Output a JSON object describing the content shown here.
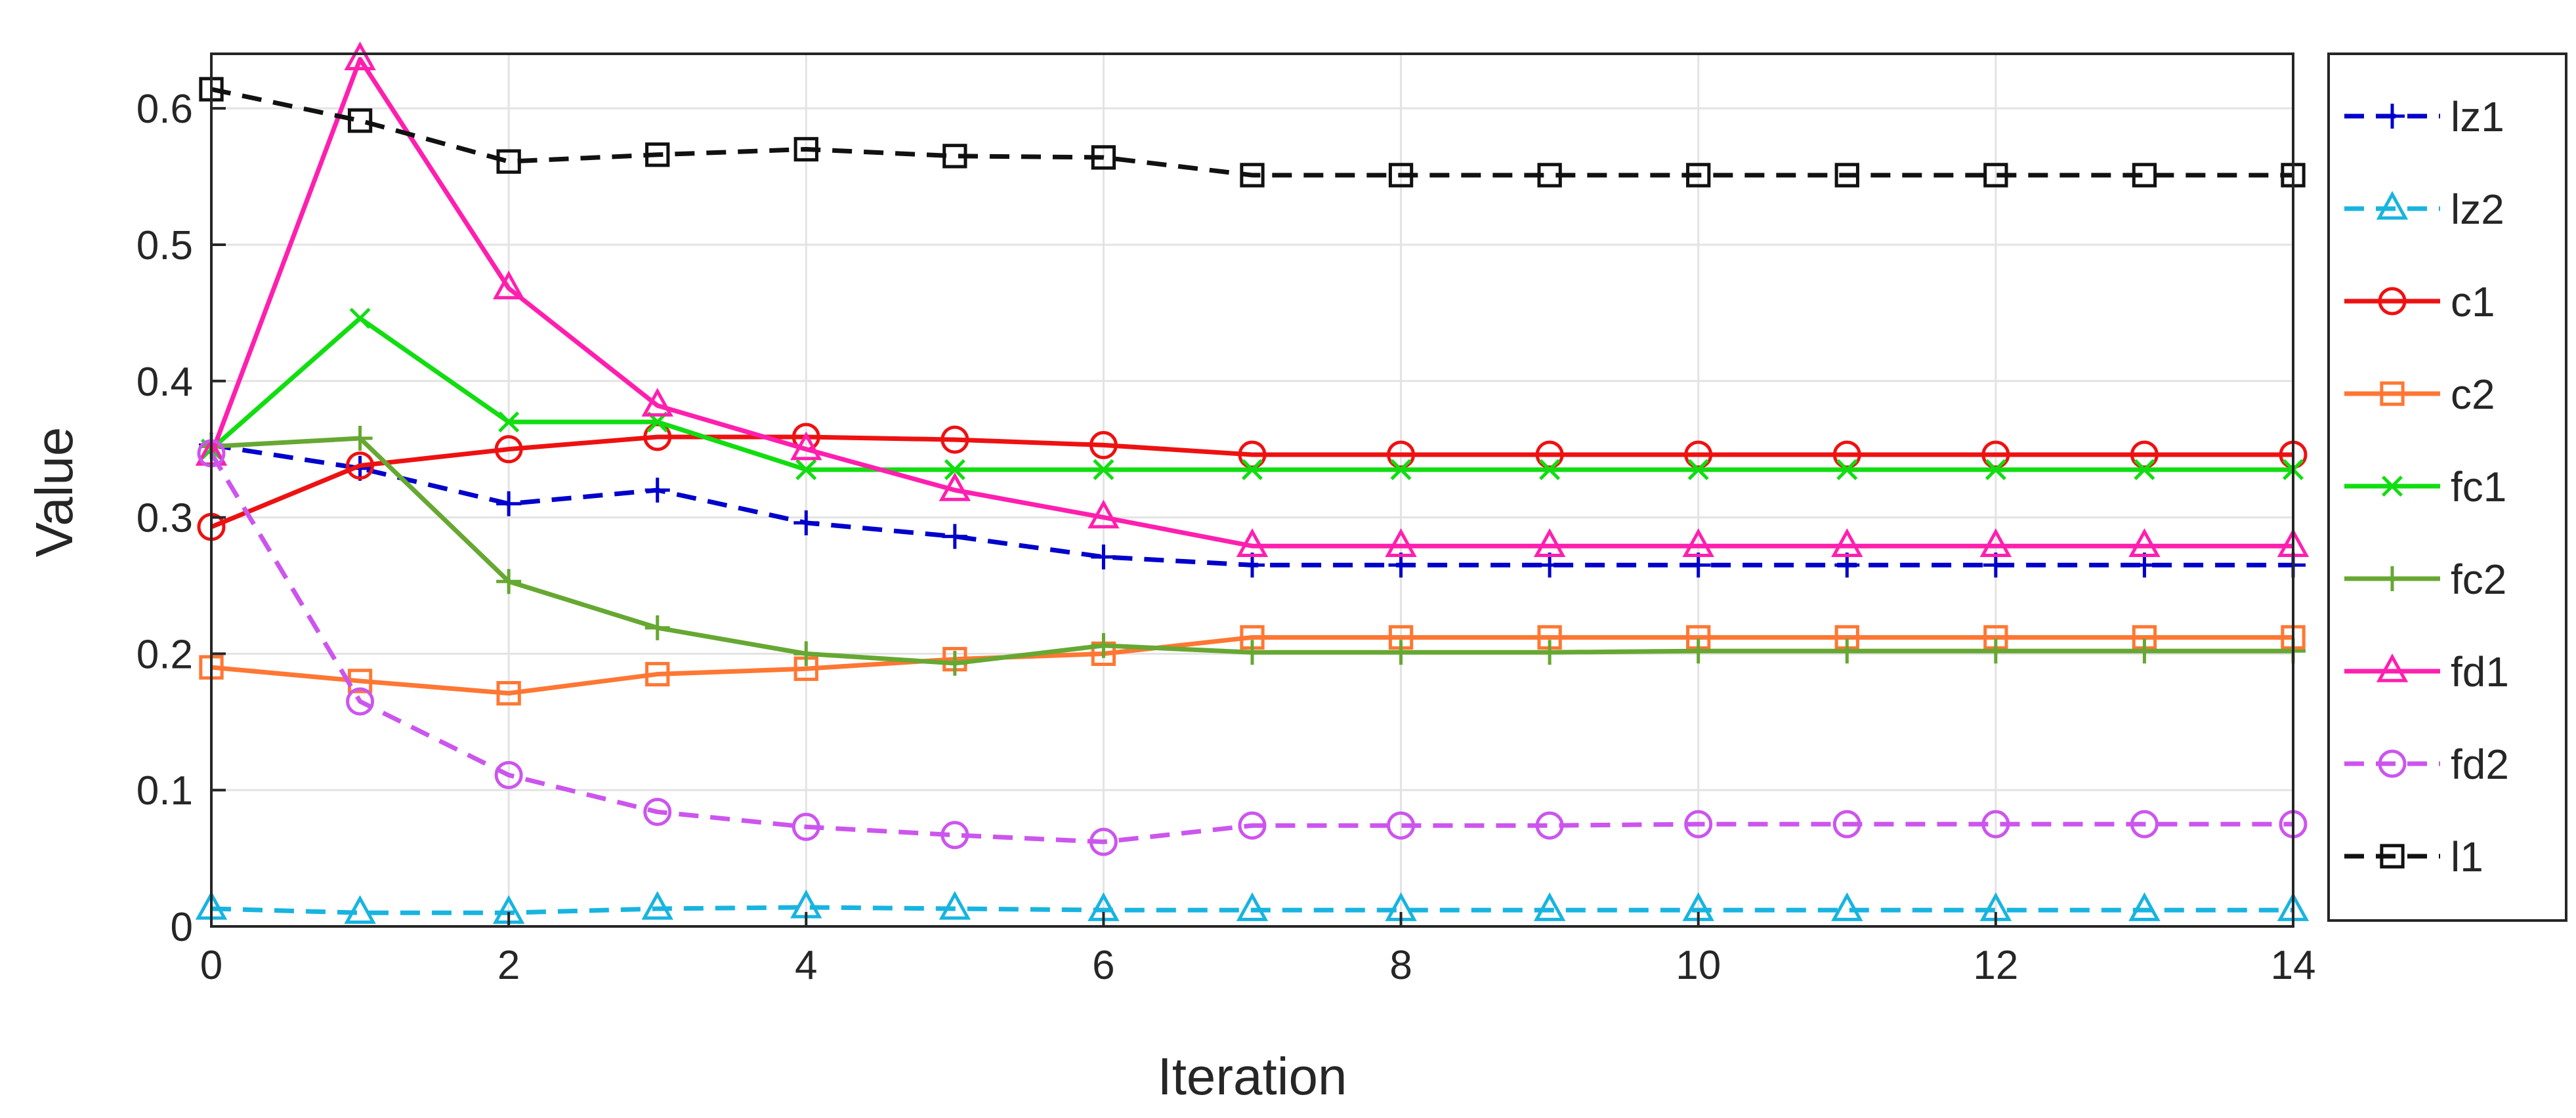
{
  "chart_data": {
    "type": "line",
    "title": "",
    "xlabel": "Iteration",
    "ylabel": "Value",
    "xlim": [
      0,
      14
    ],
    "ylim": [
      0,
      0.64
    ],
    "xticks": [
      0,
      2,
      4,
      6,
      8,
      10,
      12,
      14
    ],
    "yticks": [
      0,
      0.1,
      0.2,
      0.3,
      0.4,
      0.5,
      0.6
    ],
    "ytick_labels": [
      "0",
      "0.1",
      "0.2",
      "0.3",
      "0.4",
      "0.5",
      "0.6"
    ],
    "grid": true,
    "legend_position": "right",
    "x": [
      0,
      1,
      2,
      3,
      4,
      5,
      6,
      7,
      8,
      9,
      10,
      11,
      12,
      13,
      14
    ],
    "series": [
      {
        "name": "lz1",
        "color": "#0000cc",
        "dash": "dashed",
        "marker": "plus",
        "values": [
          0.353,
          0.336,
          0.31,
          0.32,
          0.296,
          0.286,
          0.271,
          0.265,
          0.265,
          0.265,
          0.265,
          0.265,
          0.265,
          0.265,
          0.265
        ]
      },
      {
        "name": "lz2",
        "color": "#18b4e0",
        "dash": "dashed",
        "marker": "triangle",
        "values": [
          0.013,
          0.01,
          0.01,
          0.013,
          0.014,
          0.013,
          0.012,
          0.012,
          0.012,
          0.012,
          0.012,
          0.012,
          0.012,
          0.012,
          0.012
        ]
      },
      {
        "name": "c1",
        "color": "#ee1111",
        "dash": "solid",
        "marker": "circle",
        "values": [
          0.293,
          0.338,
          0.35,
          0.359,
          0.359,
          0.357,
          0.353,
          0.346,
          0.346,
          0.346,
          0.346,
          0.346,
          0.346,
          0.346,
          0.346
        ]
      },
      {
        "name": "c2",
        "color": "#ff7733",
        "dash": "solid",
        "marker": "square",
        "values": [
          0.19,
          0.18,
          0.171,
          0.185,
          0.189,
          0.196,
          0.2,
          0.212,
          0.212,
          0.212,
          0.212,
          0.212,
          0.212,
          0.212,
          0.212
        ]
      },
      {
        "name": "fc1",
        "color": "#11dd11",
        "dash": "solid",
        "marker": "x",
        "values": [
          0.35,
          0.446,
          0.37,
          0.37,
          0.335,
          0.335,
          0.335,
          0.335,
          0.335,
          0.335,
          0.335,
          0.335,
          0.335,
          0.335,
          0.335
        ]
      },
      {
        "name": "fc2",
        "color": "#66a832",
        "dash": "solid",
        "marker": "plus",
        "values": [
          0.352,
          0.358,
          0.253,
          0.219,
          0.2,
          0.193,
          0.206,
          0.201,
          0.201,
          0.201,
          0.202,
          0.202,
          0.202,
          0.202,
          0.202
        ]
      },
      {
        "name": "fd1",
        "color": "#ff1fae",
        "dash": "solid",
        "marker": "triangle",
        "values": [
          0.346,
          0.636,
          0.468,
          0.382,
          0.35,
          0.32,
          0.3,
          0.279,
          0.279,
          0.279,
          0.279,
          0.279,
          0.279,
          0.279,
          0.279
        ]
      },
      {
        "name": "fd2",
        "color": "#cc55ee",
        "dash": "dashed",
        "marker": "circle",
        "values": [
          0.347,
          0.165,
          0.111,
          0.084,
          0.073,
          0.067,
          0.062,
          0.074,
          0.074,
          0.074,
          0.075,
          0.075,
          0.075,
          0.075,
          0.075
        ]
      },
      {
        "name": "l1",
        "color": "#111111",
        "dash": "dashed",
        "marker": "square",
        "values": [
          0.614,
          0.591,
          0.561,
          0.566,
          0.57,
          0.565,
          0.564,
          0.551,
          0.551,
          0.551,
          0.551,
          0.551,
          0.551,
          0.551,
          0.551
        ]
      }
    ]
  }
}
